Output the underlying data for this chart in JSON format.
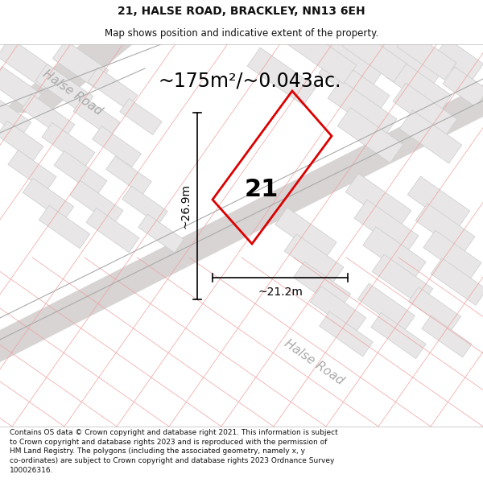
{
  "title": "21, HALSE ROAD, BRACKLEY, NN13 6EH",
  "subtitle": "Map shows position and indicative extent of the property.",
  "area_text": "~175m²/~0.043ac.",
  "width_label": "~21.2m",
  "height_label": "~26.9m",
  "house_number": "21",
  "footnote": "Contains OS data © Crown copyright and database right 2021. This information is subject to Crown copyright and database rights 2023 and is reproduced with the permission of HM Land Registry. The polygons (including the associated geometry, namely x, y co-ordinates) are subject to Crown copyright and database rights 2023 Ordnance Survey 100026316.",
  "map_bg": "#f5f3f3",
  "road_color": "#d8d4d4",
  "block_face_color": "#e8e6e6",
  "block_edge_color": "#cccccc",
  "pink_line_color": "#f0a0a0",
  "plot_border_color": "#dd0000",
  "dim_line_color": "#222222",
  "road_label_color": "#aaaaaa",
  "title_color": "#111111",
  "footnote_color": "#111111",
  "title_fontsize": 10,
  "subtitle_fontsize": 8.5,
  "area_fontsize": 17,
  "house_fontsize": 22,
  "dim_fontsize": 10,
  "road_label_fontsize": 11,
  "footnote_fontsize": 6.5
}
